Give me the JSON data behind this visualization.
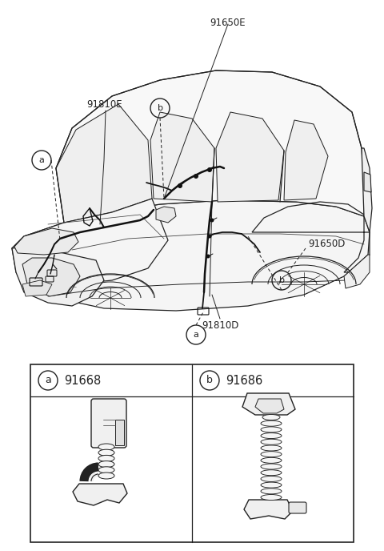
{
  "bg_color": "#ffffff",
  "line_color": "#222222",
  "fig_width": 4.8,
  "fig_height": 6.88,
  "dpi": 100,
  "label_91650E": "91650E",
  "label_91810E": "91810E",
  "label_91650D": "91650D",
  "label_91810D": "91810D",
  "part_a_number": "91668",
  "part_b_number": "91686",
  "font_size_labels": 8.5,
  "font_size_parts": 10.5
}
